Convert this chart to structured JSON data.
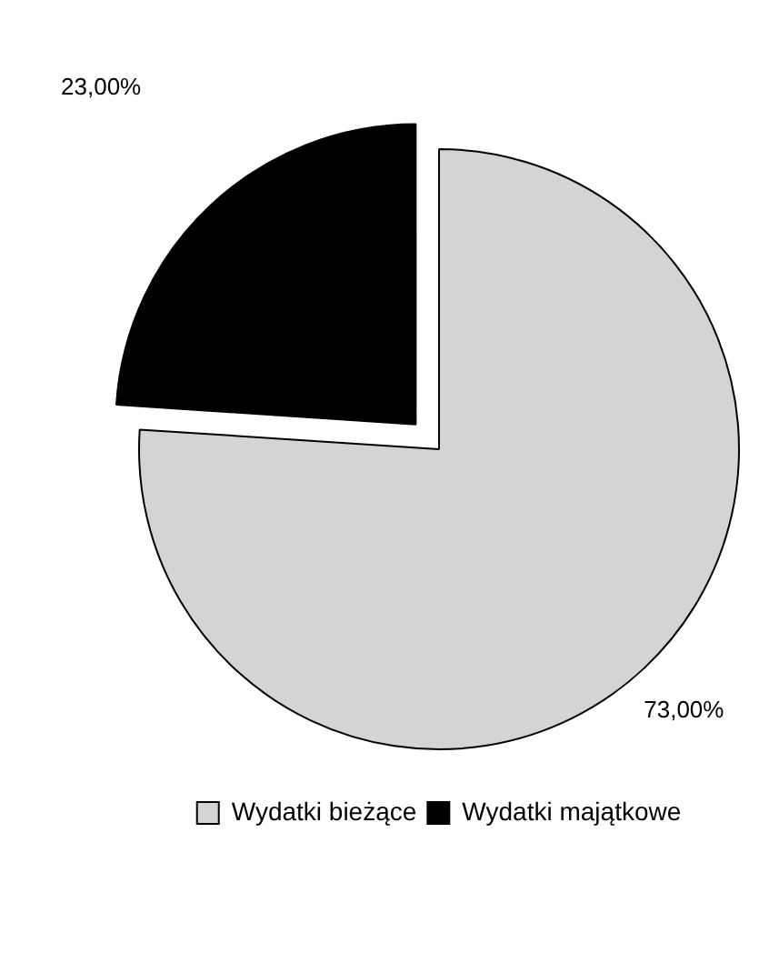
{
  "chart_data": {
    "type": "pie",
    "categories": [
      "Wydatki bieżące",
      "Wydatki majątkowe"
    ],
    "values": [
      73,
      23
    ],
    "colors": [
      "#d4d4d4",
      "#000000"
    ],
    "value_labels": [
      "73,00%",
      "23,00%"
    ],
    "legend": "bottom"
  }
}
